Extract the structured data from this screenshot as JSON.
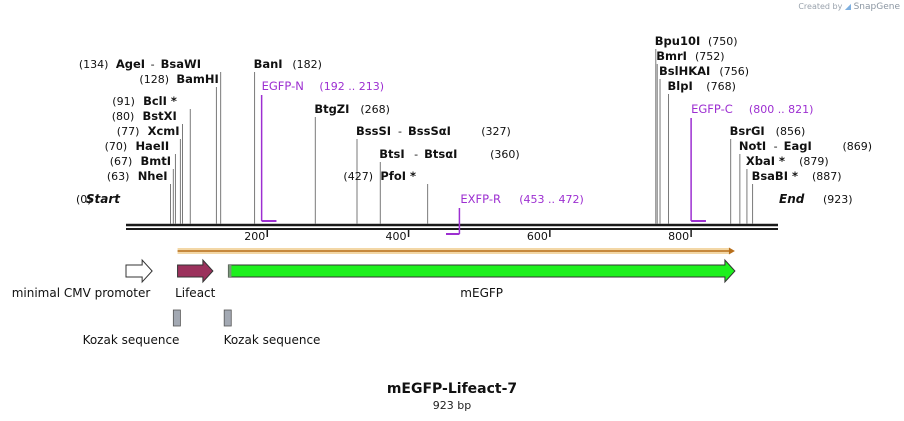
{
  "credit": {
    "prefix": "Created by",
    "brand": "SnapGene"
  },
  "plasmid": {
    "name": "mEGFP-Lifeact-7",
    "size_label": "923 bp",
    "length": 923
  },
  "ends": {
    "start": {
      "pos": 0,
      "pos_label": "(0)",
      "label": "Start"
    },
    "end": {
      "pos": 923,
      "pos_label": "(923)",
      "label": "End"
    }
  },
  "ruler": {
    "ticks": [
      {
        "pos": 200,
        "label": "200"
      },
      {
        "pos": 400,
        "label": "400"
      },
      {
        "pos": 600,
        "label": "600"
      },
      {
        "pos": 800,
        "label": "800"
      }
    ]
  },
  "sites": [
    {
      "pos": 63,
      "pos_label": "(63)",
      "parts": [
        "NheI"
      ],
      "side": "left"
    },
    {
      "pos": 67,
      "pos_label": "(67)",
      "parts": [
        "BmtI"
      ],
      "side": "left"
    },
    {
      "pos": 70,
      "pos_label": "(70)",
      "parts": [
        "HaeII"
      ],
      "side": "left"
    },
    {
      "pos": 77,
      "pos_label": "(77)",
      "parts": [
        "XcmI"
      ],
      "side": "left"
    },
    {
      "pos": 80,
      "pos_label": "(80)",
      "parts": [
        "BstXI"
      ],
      "side": "left"
    },
    {
      "pos": 91,
      "pos_label": "(91)",
      "parts": [
        "BclI *"
      ],
      "side": "left"
    },
    {
      "pos": 128,
      "pos_label": "(128)",
      "parts": [
        "BamHI"
      ],
      "side": "left"
    },
    {
      "pos": 134,
      "pos_label": "(134)",
      "parts": [
        "AgeI",
        "BsaWI"
      ],
      "side": "left"
    },
    {
      "pos": 182,
      "pos_label": "(182)",
      "parts": [
        "BanI"
      ],
      "side": "right"
    },
    {
      "pos": 268,
      "pos_label": "(268)",
      "parts": [
        "BtgZI"
      ],
      "side": "right"
    },
    {
      "pos": 327,
      "pos_label": "(327)",
      "parts": [
        "BssSI",
        "BssSαI"
      ],
      "side": "right"
    },
    {
      "pos": 360,
      "pos_label": "(360)",
      "parts": [
        "BtsI",
        "BtsαI"
      ],
      "side": "right"
    },
    {
      "pos": 427,
      "pos_label": "(427)",
      "parts": [
        "PfoI *"
      ],
      "side": "left"
    },
    {
      "pos": 750,
      "pos_label": "(750)",
      "parts": [
        "Bpu10I"
      ],
      "side": "right"
    },
    {
      "pos": 752,
      "pos_label": "(752)",
      "parts": [
        "BmrI"
      ],
      "side": "right"
    },
    {
      "pos": 756,
      "pos_label": "(756)",
      "parts": [
        "BslHKAI"
      ],
      "side": "right"
    },
    {
      "pos": 768,
      "pos_label": "(768)",
      "parts": [
        "BlpI"
      ],
      "side": "right"
    },
    {
      "pos": 856,
      "pos_label": "(856)",
      "parts": [
        "BsrGI"
      ],
      "side": "right"
    },
    {
      "pos": 869,
      "pos_label": "(869)",
      "parts": [
        "NotI",
        "EagI"
      ],
      "side": "right"
    },
    {
      "pos": 879,
      "pos_label": "(879)",
      "parts": [
        "XbaI *"
      ],
      "side": "right"
    },
    {
      "pos": 887,
      "pos_label": "(887)",
      "parts": [
        "BsaBI *"
      ],
      "side": "right"
    }
  ],
  "primers": [
    {
      "name": "EGFP-N",
      "range_label": "(192 .. 213)",
      "start": 192,
      "end": 213,
      "direction": "forward"
    },
    {
      "name": "EXFP-R",
      "range_label": "(453 .. 472)",
      "start": 453,
      "end": 472,
      "direction": "reverse"
    },
    {
      "name": "EGFP-C",
      "range_label": "(800 .. 821)",
      "start": 800,
      "end": 821,
      "direction": "forward"
    }
  ],
  "orf": {
    "start": 73,
    "end": 862
  },
  "features": [
    {
      "name": "minimal CMV promoter",
      "start": 0,
      "end": 37,
      "kind": "promoter",
      "color": "#ffffff"
    },
    {
      "name": "Lifeact",
      "start": 73,
      "end": 123,
      "kind": "cds",
      "color": "#9b315c"
    },
    {
      "name": "mEGFP",
      "start": 145,
      "end": 862,
      "kind": "cds",
      "color": "#1ef01e"
    }
  ],
  "kozak": [
    {
      "name": "Kozak sequence",
      "start": 67,
      "end": 77
    },
    {
      "name": "Kozak sequence",
      "start": 139,
      "end": 149
    }
  ],
  "colors": {
    "primer": "#9d2fd1",
    "orf_fill": "#f3d7a6",
    "orf_stroke": "#b76e1a",
    "kozak_fill": "#a3a9b3",
    "backbone": "#1a1a1a"
  }
}
